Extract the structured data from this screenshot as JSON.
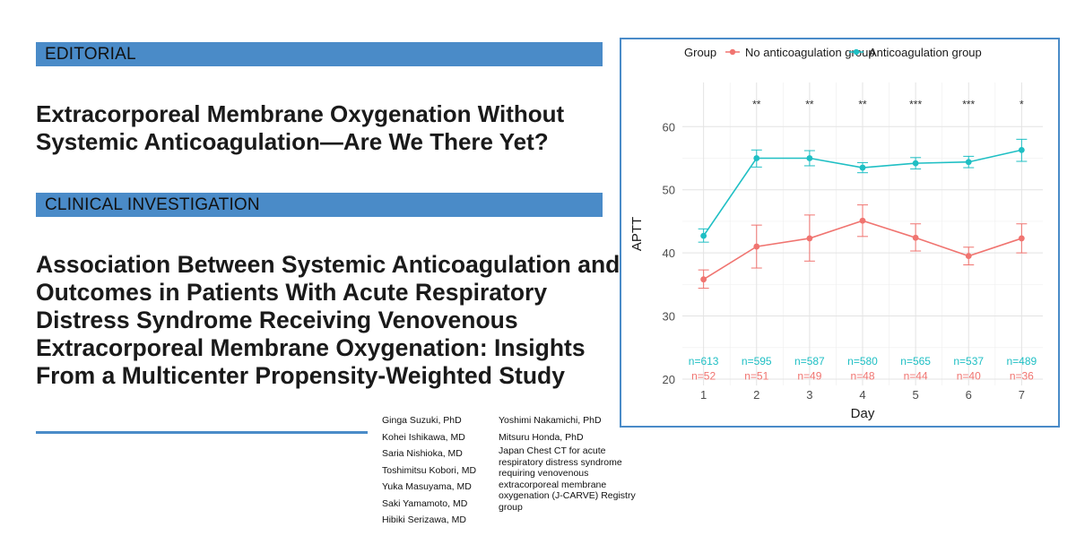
{
  "editorial": {
    "label": "EDITORIAL",
    "title": "Extracorporeal Membrane Oxygenation Without Systemic Anticoagulation—Are We There Yet?"
  },
  "clinical": {
    "label": "CLINICAL INVESTIGATION",
    "title": "Association Between Systemic Anticoagulation and Outcomes in Patients With Acute Respiratory Distress Syndrome Receiving Venovenous Extracorporeal Membrane Oxygenation: Insights From a Multicenter Propensity-Weighted Study"
  },
  "authors": {
    "left": [
      "Ginga Suzuki, PhD",
      "Kohei Ishikawa, MD",
      "Saria Nishioka, MD",
      "Toshimitsu Kobori, MD",
      "Yuka Masuyama, MD",
      "Saki Yamamoto, MD",
      "Hibiki Serizawa, MD"
    ],
    "right": [
      "Yoshimi Nakamichi, PhD",
      "Mitsuru Honda, PhD"
    ],
    "group": "Japan Chest CT for acute respiratory distress syndrome requiring venovenous extracorporeal membrane oxygenation (J-CARVE) Registry group"
  },
  "chart_data": {
    "type": "line",
    "title": "",
    "xlabel": "Day",
    "ylabel": "APTT",
    "x": [
      1,
      2,
      3,
      4,
      5,
      6,
      7
    ],
    "ylim": [
      19,
      67
    ],
    "yticks": [
      20,
      30,
      40,
      50,
      60
    ],
    "legend": {
      "title": "Group",
      "position": "top"
    },
    "series": [
      {
        "name": "No anticoagulation group",
        "color": "#f07470",
        "values": [
          35.8,
          41.0,
          42.3,
          45.1,
          42.4,
          39.5,
          42.3
        ],
        "lower": [
          34.4,
          37.6,
          38.7,
          42.6,
          40.3,
          38.1,
          40.0
        ],
        "upper": [
          37.3,
          44.4,
          46.0,
          47.6,
          44.6,
          40.9,
          44.6
        ],
        "n_labels": [
          "n=52",
          "n=51",
          "n=49",
          "n=48",
          "n=44",
          "n=40",
          "n=36"
        ]
      },
      {
        "name": "Anticoagulation group",
        "color": "#1fbfc4",
        "values": [
          42.7,
          55.0,
          55.0,
          53.5,
          54.2,
          54.4,
          56.3
        ],
        "lower": [
          41.7,
          53.6,
          53.8,
          52.7,
          53.3,
          53.5,
          54.5
        ],
        "upper": [
          43.8,
          56.3,
          56.2,
          54.3,
          55.1,
          55.3,
          58.0
        ],
        "n_labels": [
          "n=613",
          "n=595",
          "n=587",
          "n=580",
          "n=565",
          "n=537",
          "n=489"
        ]
      }
    ],
    "significance": [
      "",
      "**",
      "**",
      "**",
      "***",
      "***",
      "*"
    ]
  }
}
